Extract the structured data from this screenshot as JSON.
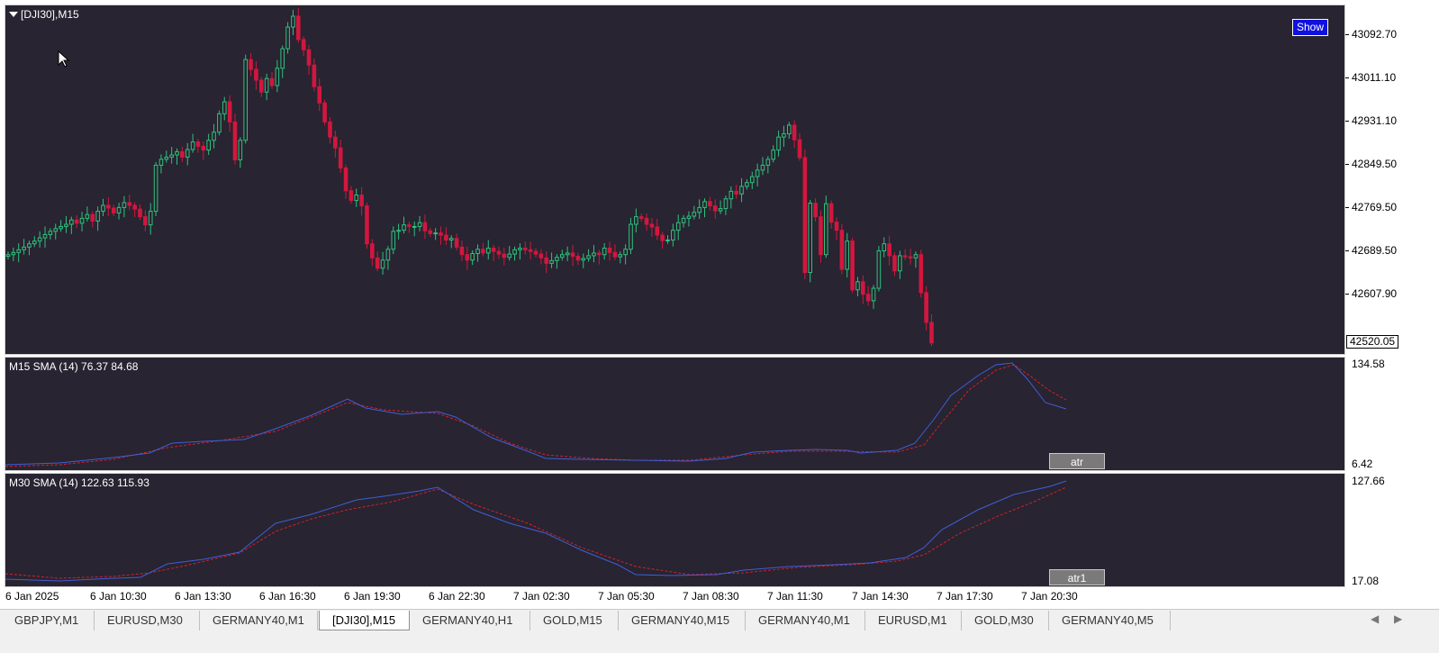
{
  "chart": {
    "title": "[DJI30],M15",
    "show_label": "Show",
    "current_price": "42520.05",
    "price_labels": [
      "43092.70",
      "43011.10",
      "42931.10",
      "42849.50",
      "42769.50",
      "42689.50",
      "42607.90"
    ],
    "colors": {
      "background": "#282431",
      "bull": "#2ec27e",
      "bear": "#d2173e",
      "sma_line": "#3f5ed8",
      "ma_signal": "#d4202a"
    }
  },
  "atr_panel": {
    "title": "M15 SMA (14) 76.37 84.68",
    "button_label": "atr",
    "axis_top": "134.58",
    "axis_bottom": "6.42"
  },
  "atr1_panel": {
    "title": "M30 SMA (14) 122.63 115.93",
    "button_label": "atr1",
    "axis_top": "127.66",
    "axis_bottom": "17.08"
  },
  "time_labels": [
    "6 Jan 2025",
    "6 Jan 10:30",
    "6 Jan 13:30",
    "6 Jan 16:30",
    "6 Jan 19:30",
    "6 Jan 22:30",
    "7 Jan 02:30",
    "7 Jan 05:30",
    "7 Jan 08:30",
    "7 Jan 11:30",
    "7 Jan 14:30",
    "7 Jan 17:30",
    "7 Jan 20:30"
  ],
  "tabs": [
    {
      "label": "GBPJPY,M1",
      "active": false
    },
    {
      "label": "EURUSD,M30",
      "active": false
    },
    {
      "label": "GERMANY40,M1",
      "active": false
    },
    {
      "label": "[DJI30],M15",
      "active": true
    },
    {
      "label": "GERMANY40,H1",
      "active": false
    },
    {
      "label": "GOLD,M15",
      "active": false
    },
    {
      "label": "GERMANY40,M15",
      "active": false
    },
    {
      "label": "GERMANY40,M1",
      "active": false
    },
    {
      "label": "EURUSD,M1",
      "active": false
    },
    {
      "label": "GOLD,M30",
      "active": false
    },
    {
      "label": "GERMANY40,M5",
      "active": false
    }
  ],
  "chart_data": {
    "type": "candlestick",
    "title": "[DJI30],M15",
    "price_range": [
      42520,
      43140
    ],
    "closes": [
      42690,
      42694,
      42699,
      42704,
      42710,
      42715,
      42721,
      42727,
      42733,
      42738,
      42742,
      42746,
      42754,
      42748,
      42757,
      42764,
      42752,
      42770,
      42781,
      42776,
      42767,
      42777,
      42786,
      42781,
      42774,
      42760,
      42745,
      42770,
      42855,
      42866,
      42870,
      42874,
      42880,
      42870,
      42884,
      42898,
      42890,
      42883,
      42901,
      42916,
      42950,
      42972,
      42935,
      42865,
      42901,
      43050,
      43032,
      43012,
      42990,
      43015,
      43002,
      43034,
      43070,
      43110,
      43130,
      43087,
      43068,
      43040,
      43000,
      42970,
      42935,
      42907,
      42887,
      42850,
      42808,
      42790,
      42800,
      42780,
      42710,
      42684,
      42665,
      42680,
      42700,
      42733,
      42735,
      42745,
      42742,
      42742,
      42749,
      42734,
      42729,
      42730,
      42726,
      42717,
      42720,
      42704,
      42690,
      42680,
      42692,
      42700,
      42693,
      42702,
      42696,
      42691,
      42685,
      42691,
      42699,
      42702,
      42699,
      42696,
      42691,
      42684,
      42674,
      42679,
      42685,
      42690,
      42693,
      42687,
      42680,
      42683,
      42688,
      42693,
      42690,
      42702,
      42694,
      42686,
      42690,
      42700,
      42746,
      42760,
      42757,
      42746,
      42741,
      42726,
      42716,
      42717,
      42735,
      42749,
      42757,
      42761,
      42768,
      42777,
      42788,
      42780,
      42771,
      42775,
      42793,
      42807,
      42802,
      42816,
      42823,
      42834,
      42846,
      42855,
      42866,
      42883,
      42907,
      42913,
      42929,
      42902,
      42869,
      42657,
      42785,
      42760,
      42690,
      42784,
      42750,
      42735,
      42663,
      42715,
      42625,
      42640,
      42617,
      42605,
      42628,
      42697,
      42710,
      42688,
      42660,
      42688,
      42686,
      42684,
      42690,
      42620,
      42565,
      42527
    ]
  }
}
